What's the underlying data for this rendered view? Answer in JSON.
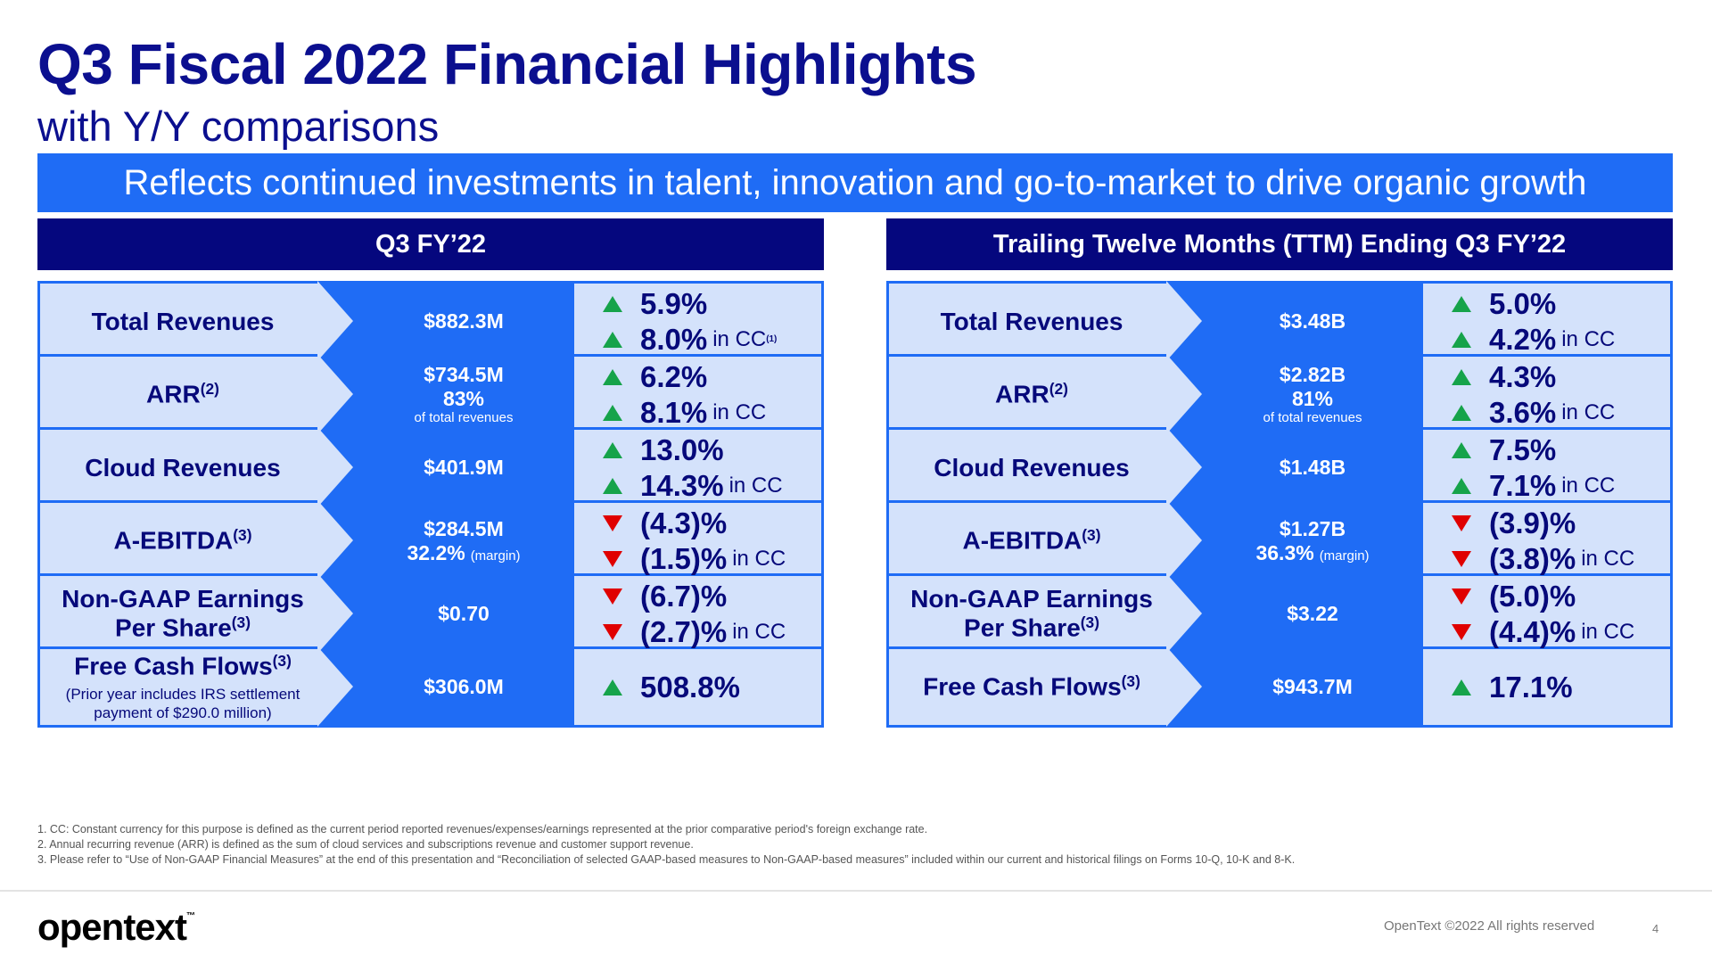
{
  "slide": {
    "title": "Q3 Fiscal 2022 Financial Highlights",
    "subtitle": "with Y/Y comparisons",
    "banner": "Reflects continued investments in talent, innovation and go-to-market to drive organic growth"
  },
  "left": {
    "header": "Q3 FY’22",
    "rows": [
      {
        "name": "Total Revenues",
        "sup": "",
        "value": "$882.3M",
        "line2": "",
        "note": "",
        "c1": "5.9%",
        "c1_cc": "",
        "c1_dir": "up",
        "c2": "8.0%",
        "c2_cc": "in CC",
        "c2_sup": "(1)",
        "c2_dir": "up"
      },
      {
        "name": "ARR",
        "sup": "(2)",
        "value": "$734.5M",
        "line2": "83%",
        "note": "of total revenues",
        "c1": "6.2%",
        "c1_dir": "up",
        "c2": "8.1%",
        "c2_cc": "in CC",
        "c2_dir": "up"
      },
      {
        "name": "Cloud Revenues",
        "sup": "",
        "value": "$401.9M",
        "c1": "13.0%",
        "c1_dir": "up",
        "c2": "14.3%",
        "c2_cc": "in CC",
        "c2_dir": "up"
      },
      {
        "name": "A-EBITDA",
        "sup": "(3)",
        "value": "$284.5M",
        "line2": "32.2%",
        "line2_note": "(margin)",
        "c1": "(4.3)%",
        "c1_dir": "down",
        "c2": "(1.5)%",
        "c2_cc": "in CC",
        "c2_dir": "down"
      },
      {
        "name": "Non-GAAP Earnings",
        "name2": "Per Share",
        "sup": "(3)",
        "value": "$0.70",
        "c1": "(6.7)%",
        "c1_dir": "down",
        "c2": "(2.7)%",
        "c2_cc": "in CC",
        "c2_dir": "down"
      },
      {
        "name": "Free Cash Flows",
        "sup": "(3)",
        "name_note": "(Prior year includes IRS settlement payment of $290.0 million)",
        "value": "$306.0M",
        "c1": "508.8%",
        "c1_dir": "up"
      }
    ]
  },
  "right": {
    "header": "Trailing Twelve Months (TTM) Ending Q3 FY’22",
    "rows": [
      {
        "name": "Total Revenues",
        "value": "$3.48B",
        "c1": "5.0%",
        "c1_dir": "up",
        "c2": "4.2%",
        "c2_cc": "in CC",
        "c2_dir": "up"
      },
      {
        "name": "ARR",
        "sup": "(2)",
        "value": "$2.82B",
        "line2": "81%",
        "note": "of total revenues",
        "c1": "4.3%",
        "c1_dir": "up",
        "c2": "3.6%",
        "c2_cc": "in CC",
        "c2_dir": "up"
      },
      {
        "name": "Cloud Revenues",
        "value": "$1.48B",
        "c1": "7.5%",
        "c1_dir": "up",
        "c2": "7.1%",
        "c2_cc": "in CC",
        "c2_dir": "up"
      },
      {
        "name": "A-EBITDA",
        "sup": "(3)",
        "value": "$1.27B",
        "line2": "36.3%",
        "line2_note": "(margin)",
        "c1": "(3.9)%",
        "c1_dir": "down",
        "c2": "(3.8)%",
        "c2_cc": "in CC",
        "c2_dir": "down"
      },
      {
        "name": "Non-GAAP Earnings",
        "name2": "Per Share",
        "sup": "(3)",
        "value": "$3.22",
        "c1": "(5.0)%",
        "c1_dir": "down",
        "c2": "(4.4)%",
        "c2_cc": "in CC",
        "c2_dir": "down"
      },
      {
        "name": "Free Cash Flows",
        "sup": "(3)",
        "value": "$943.7M",
        "c1": "17.1%",
        "c1_dir": "up"
      }
    ]
  },
  "footnotes": [
    "1.  CC: Constant currency for this purpose is defined as the current period reported revenues/expenses/earnings represented at the prior comparative period's foreign exchange rate.",
    "2.  Annual recurring revenue (ARR) is defined as the sum of cloud services and subscriptions revenue and customer support revenue.",
    "3.  Please refer to “Use of Non-GAAP Financial Measures” at the end of this presentation and “Reconciliation of selected GAAP-based measures to Non-GAAP-based measures” included within our current and historical filings on Forms 10-Q, 10-K and 8-K."
  ],
  "footer": {
    "logo": "opentext",
    "logo_tm": "™",
    "copyright": "OpenText ©2022 All rights reserved",
    "page": "4"
  },
  "colors": {
    "navy": "#0b0f8f",
    "blue": "#1f6cf5",
    "light": "#d4e2fb",
    "up": "#16a34a",
    "down": "#e00000"
  }
}
